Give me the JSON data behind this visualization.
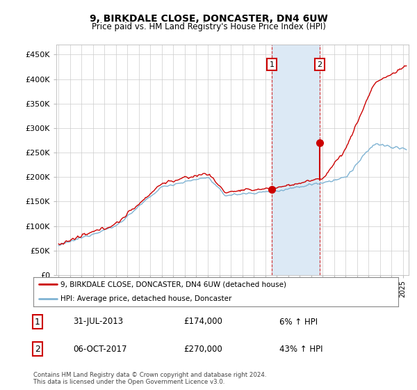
{
  "title": "9, BIRKDALE CLOSE, DONCASTER, DN4 6UW",
  "subtitle": "Price paid vs. HM Land Registry's House Price Index (HPI)",
  "ylabel_ticks": [
    "£0",
    "£50K",
    "£100K",
    "£150K",
    "£200K",
    "£250K",
    "£300K",
    "£350K",
    "£400K",
    "£450K"
  ],
  "ytick_values": [
    0,
    50000,
    100000,
    150000,
    200000,
    250000,
    300000,
    350000,
    400000,
    450000
  ],
  "ylim": [
    0,
    470000
  ],
  "xlim_start": 1994.8,
  "xlim_end": 2025.5,
  "hpi_color": "#7fb3d3",
  "price_color": "#cc0000",
  "shaded_color": "#dce9f5",
  "marker1_x": 2013.57,
  "marker1_y": 174000,
  "marker2_x": 2017.76,
  "marker2_y": 270000,
  "vline1_x": 2013.57,
  "vline2_x": 2017.76,
  "legend_label1": "9, BIRKDALE CLOSE, DONCASTER, DN4 6UW (detached house)",
  "legend_label2": "HPI: Average price, detached house, Doncaster",
  "table_row1": [
    "1",
    "31-JUL-2013",
    "£174,000",
    "6% ↑ HPI"
  ],
  "table_row2": [
    "2",
    "06-OCT-2017",
    "£270,000",
    "43% ↑ HPI"
  ],
  "footnote": "Contains HM Land Registry data © Crown copyright and database right 2024.\nThis data is licensed under the Open Government Licence v3.0.",
  "background_color": "#ffffff",
  "grid_color": "#cccccc"
}
